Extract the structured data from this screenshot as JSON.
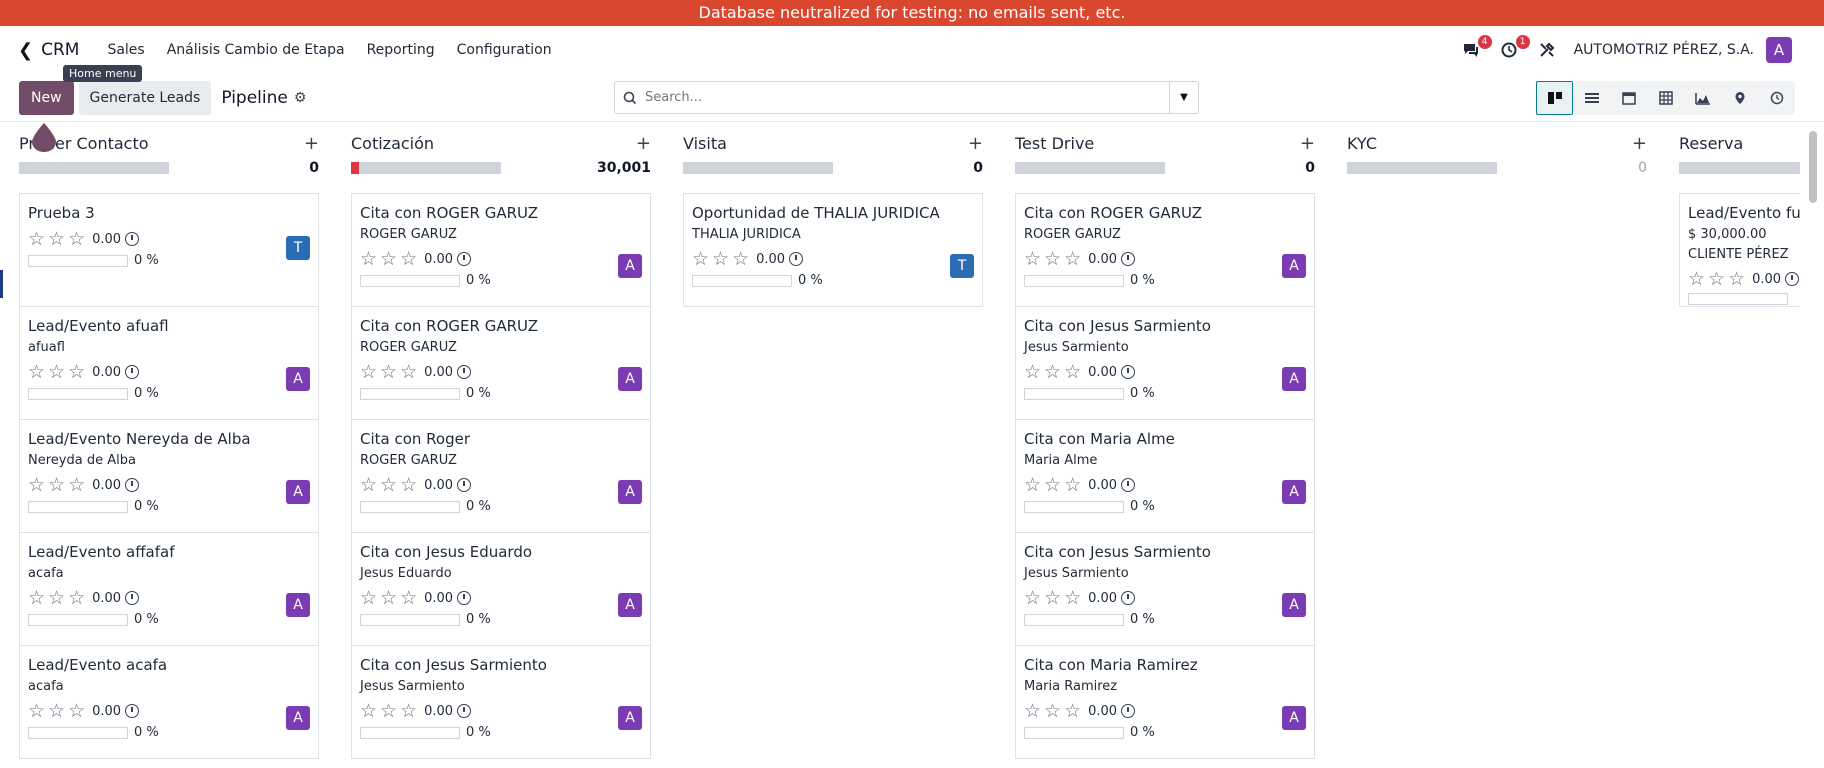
{
  "banner": "Database neutralized for testing: no emails sent, etc.",
  "navbar": {
    "app": "CRM",
    "menu": [
      "Sales",
      "Análisis Cambio de Etapa",
      "Reporting",
      "Configuration"
    ],
    "messages_count": "4",
    "activities_count": "1",
    "company": "AUTOMOTRIZ PÉREZ, S.A.",
    "avatar": "A",
    "tooltip": "Home menu"
  },
  "control": {
    "new_label": "New",
    "generate_label": "Generate Leads",
    "title": "Pipeline",
    "search_placeholder": "Search..."
  },
  "colors": {
    "brand": "#714b67",
    "user_a": "#7b3bb3",
    "user_t": "#2a6db5",
    "danger": "#dc3545"
  },
  "columns": [
    {
      "name": "Primer Contacto",
      "total": "0",
      "fill": 0,
      "cards": [
        {
          "title": "Prueba 3",
          "sub": "",
          "amount": "0.00",
          "prob": "0 %",
          "user": "T"
        },
        {
          "title": "Lead/Evento afuafl",
          "sub": "afuafl",
          "amount": "0.00",
          "prob": "0 %",
          "user": "A"
        },
        {
          "title": "Lead/Evento Nereyda de Alba",
          "sub": "Nereyda de Alba",
          "amount": "0.00",
          "prob": "0 %",
          "user": "A"
        },
        {
          "title": "Lead/Evento affafaf",
          "sub": "acafa",
          "amount": "0.00",
          "prob": "0 %",
          "user": "A"
        },
        {
          "title": "Lead/Evento acafa",
          "sub": "acafa",
          "amount": "0.00",
          "prob": "0 %",
          "user": "A"
        }
      ]
    },
    {
      "name": "Cotización",
      "total": "30,001",
      "fill": 0.05,
      "cards": [
        {
          "title": "Cita con ROGER GARUZ",
          "sub": "ROGER GARUZ",
          "amount": "0.00",
          "prob": "0 %",
          "user": "A"
        },
        {
          "title": "Cita con ROGER GARUZ",
          "sub": "ROGER GARUZ",
          "amount": "0.00",
          "prob": "0 %",
          "user": "A"
        },
        {
          "title": "Cita con Roger",
          "sub": "ROGER GARUZ",
          "amount": "0.00",
          "prob": "0 %",
          "user": "A"
        },
        {
          "title": "Cita con Jesus Eduardo",
          "sub": "Jesus Eduardo",
          "amount": "0.00",
          "prob": "0 %",
          "user": "A"
        },
        {
          "title": "Cita con Jesus Sarmiento",
          "sub": "Jesus Sarmiento",
          "amount": "0.00",
          "prob": "0 %",
          "user": "A"
        }
      ]
    },
    {
      "name": "Visita",
      "total": "0",
      "fill": 0,
      "cards": [
        {
          "title": "Oportunidad de THALIA JURIDICA",
          "sub": "THALIA JURIDICA",
          "amount": "0.00",
          "prob": "0 %",
          "user": "T"
        }
      ]
    },
    {
      "name": "Test Drive",
      "total": "0",
      "fill": 0,
      "cards": [
        {
          "title": "Cita con ROGER GARUZ",
          "sub": "ROGER GARUZ",
          "amount": "0.00",
          "prob": "0 %",
          "user": "A"
        },
        {
          "title": "Cita con Jesus Sarmiento",
          "sub": "Jesus Sarmiento",
          "amount": "0.00",
          "prob": "0 %",
          "user": "A"
        },
        {
          "title": "Cita con Maria Alme",
          "sub": "Maria Alme",
          "amount": "0.00",
          "prob": "0 %",
          "user": "A"
        },
        {
          "title": "Cita con Jesus Sarmiento",
          "sub": "Jesus Sarmiento",
          "amount": "0.00",
          "prob": "0 %",
          "user": "A"
        },
        {
          "title": "Cita con Maria Ramirez",
          "sub": "Maria Ramirez",
          "amount": "0.00",
          "prob": "0 %",
          "user": "A"
        }
      ]
    },
    {
      "name": "KYC",
      "total": "0",
      "fill": 0,
      "muted": true,
      "cards": []
    },
    {
      "name": "Reserva",
      "total": "",
      "fill": 0,
      "cards": [
        {
          "title": "Lead/Evento ful",
          "revenue": "$ 30,000.00",
          "sub": "CLIENTE PÉREZ",
          "amount": "0.00",
          "prob": "",
          "user": ""
        }
      ]
    }
  ]
}
